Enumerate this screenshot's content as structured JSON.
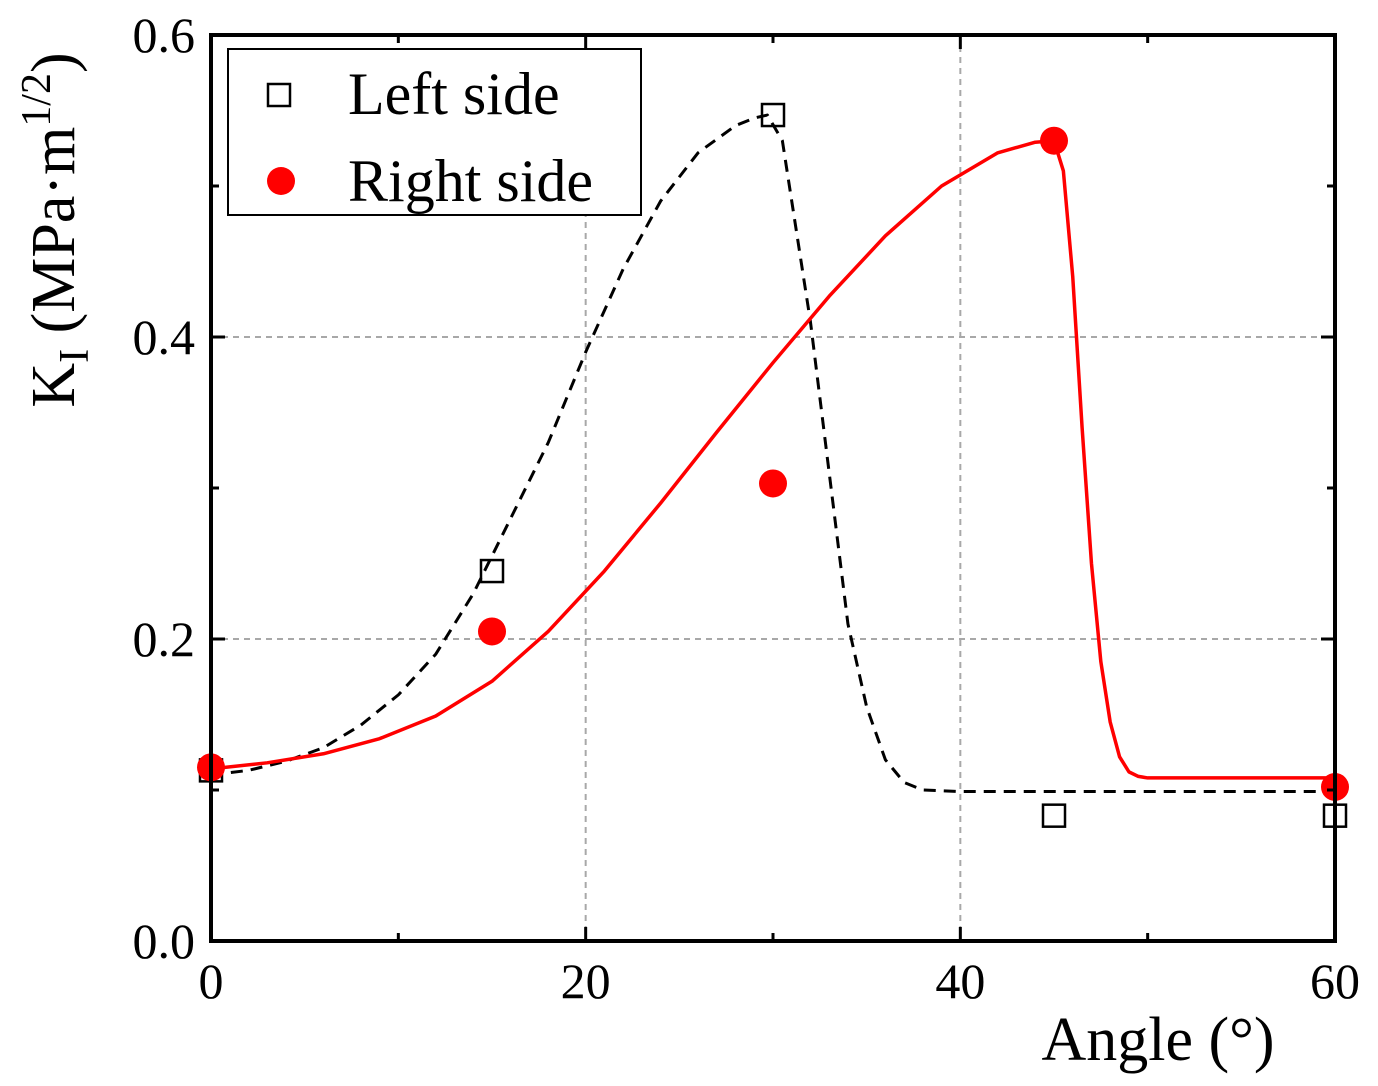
{
  "chart_data": {
    "type": "scatter",
    "xlabel": "Angle (°)",
    "ylabel": {
      "main": "K",
      "subscript": "I",
      "unit_open": " (MPa·m",
      "unit_power": "1/2",
      "unit_close": ")"
    },
    "xlim": [
      0,
      60
    ],
    "ylim": [
      0,
      0.6
    ],
    "x_ticks": [
      0,
      20,
      40,
      60
    ],
    "x_tick_labels": [
      "0",
      "20",
      "40",
      "60"
    ],
    "y_ticks": [
      0,
      0.2,
      0.4,
      0.6
    ],
    "y_tick_labels": [
      "0.0",
      "0.2",
      "0.4",
      "0.6"
    ],
    "grid": true,
    "legend_position": "top-left",
    "series": [
      {
        "name": "Left side",
        "marker": "open-square",
        "color": "#000000",
        "x": [
          0,
          15,
          30,
          45,
          60
        ],
        "y": [
          0.113,
          0.245,
          0.547,
          0.083,
          0.083
        ],
        "fit_curve": {
          "style": "dashed",
          "x": [
            0,
            2,
            4,
            6,
            8,
            10,
            12,
            14,
            16,
            18,
            20,
            22,
            24,
            26,
            28,
            29,
            29.7,
            30.5,
            31,
            32,
            33,
            34,
            35,
            36,
            37,
            38,
            40,
            45,
            50,
            55,
            60
          ],
          "y": [
            0.11,
            0.113,
            0.119,
            0.128,
            0.143,
            0.163,
            0.19,
            0.23,
            0.28,
            0.33,
            0.39,
            0.445,
            0.49,
            0.522,
            0.54,
            0.545,
            0.547,
            0.53,
            0.49,
            0.41,
            0.31,
            0.21,
            0.155,
            0.12,
            0.105,
            0.1,
            0.099,
            0.099,
            0.099,
            0.099,
            0.099
          ]
        }
      },
      {
        "name": "Right side",
        "marker": "filled-circle",
        "color": "#ff0000",
        "x": [
          0,
          15,
          30,
          45,
          60
        ],
        "y": [
          0.115,
          0.205,
          0.303,
          0.53,
          0.102
        ],
        "fit_curve": {
          "style": "solid",
          "x": [
            0,
            3,
            6,
            9,
            12,
            15,
            18,
            21,
            24,
            27,
            30,
            33,
            36,
            39,
            42,
            44,
            45,
            45.5,
            46,
            46.5,
            47,
            47.5,
            48,
            48.5,
            49,
            49.5,
            50,
            52,
            55,
            60
          ],
          "y": [
            0.114,
            0.118,
            0.124,
            0.134,
            0.149,
            0.172,
            0.205,
            0.245,
            0.29,
            0.337,
            0.383,
            0.427,
            0.467,
            0.5,
            0.522,
            0.529,
            0.53,
            0.51,
            0.44,
            0.34,
            0.25,
            0.185,
            0.145,
            0.122,
            0.112,
            0.109,
            0.108,
            0.108,
            0.108,
            0.108
          ]
        }
      }
    ]
  }
}
